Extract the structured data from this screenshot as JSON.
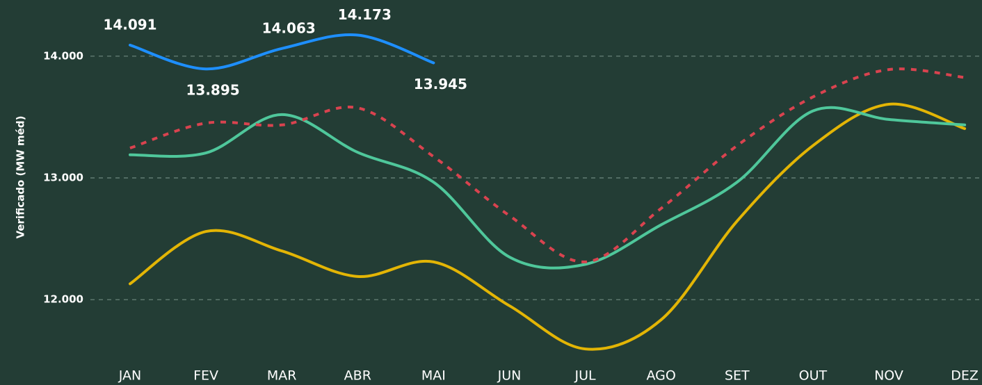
{
  "chart_data": {
    "type": "line",
    "y_label": "Verificado (MW méd)",
    "categories": [
      "JAN",
      "FEV",
      "MAR",
      "ABR",
      "MAI",
      "JUN",
      "JUL",
      "AGO",
      "SET",
      "OUT",
      "NOV",
      "DEZ"
    ],
    "ylim": [
      11550,
      14450
    ],
    "yticks": [
      {
        "value": 12000,
        "label": "12.000"
      },
      {
        "value": 13000,
        "label": "13.000"
      },
      {
        "value": 14000,
        "label": "14.000"
      }
    ],
    "grid": true,
    "series": [
      {
        "color": "#e3b505",
        "dashed": false,
        "values": [
          12130,
          12560,
          12400,
          12190,
          12310,
          11950,
          11595,
          11835,
          12645,
          13265,
          13605,
          13405
        ]
      },
      {
        "color": "#4fc79b",
        "dashed": false,
        "values": [
          13190,
          13205,
          13520,
          13210,
          12965,
          12350,
          12290,
          12615,
          12965,
          13550,
          13480,
          13435
        ]
      },
      {
        "color": "#d9434f",
        "dashed": true,
        "values": [
          13245,
          13450,
          13435,
          13575,
          13175,
          12690,
          12310,
          12750,
          13265,
          13665,
          13890,
          13825
        ]
      },
      {
        "color": "#1e8fff",
        "dashed": false,
        "values": [
          14091,
          13895,
          14063,
          14173,
          13945,
          null,
          null,
          null,
          null,
          null,
          null,
          null
        ],
        "value_labels": [
          "14.091",
          "13.895",
          "14.063",
          "14.173",
          "13.945",
          null,
          null,
          null,
          null,
          null,
          null,
          null
        ]
      }
    ]
  }
}
